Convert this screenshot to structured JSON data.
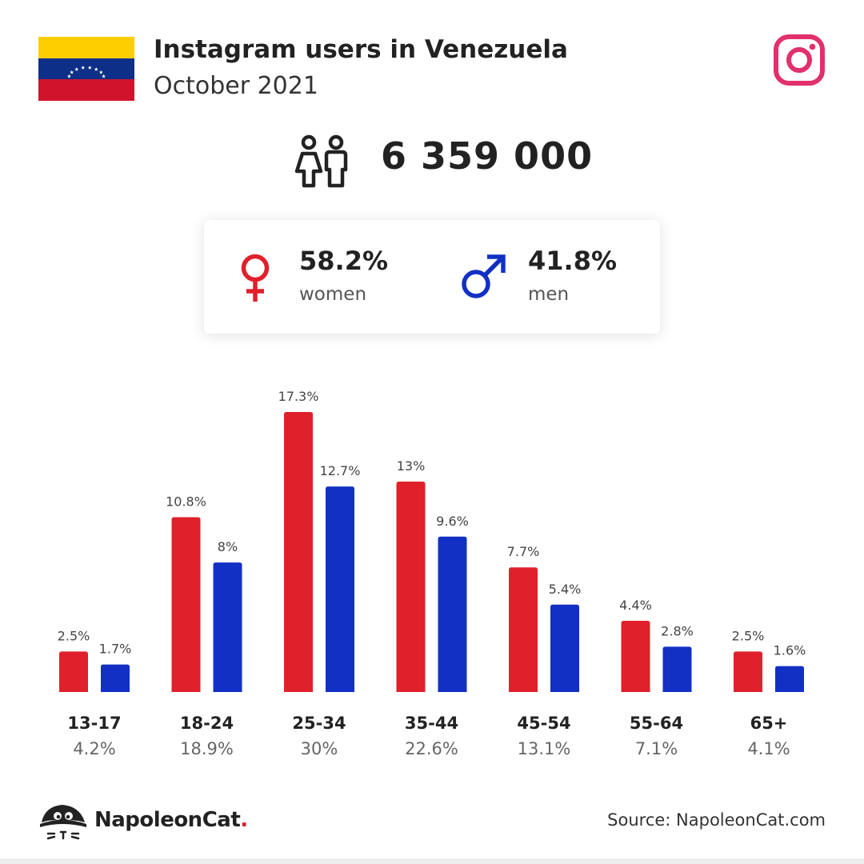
{
  "header": {
    "title": "Instagram users in Venezuela",
    "subtitle": "October 2021"
  },
  "flag": {
    "colors": [
      "#FFCE00",
      "#0E2F87",
      "#CF142B"
    ],
    "star_color": "#ffffff"
  },
  "icons": {
    "platform": "instagram-icon",
    "platform_color": "#E1306C",
    "users": "people-icon",
    "female": "female-symbol-icon",
    "male": "male-symbol-icon",
    "brand": "napoleoncat-logo-icon"
  },
  "total_users": "6 359 000",
  "gender": {
    "women": {
      "pct": "58.2%",
      "label": "women",
      "color": "#E0202A"
    },
    "men": {
      "pct": "41.8%",
      "label": "men",
      "color": "#1230C4"
    }
  },
  "chart_data": {
    "type": "bar",
    "categories": [
      "13-17",
      "18-24",
      "25-34",
      "35-44",
      "45-54",
      "55-64",
      "65+"
    ],
    "category_totals": [
      "4.2%",
      "18.9%",
      "30%",
      "22.6%",
      "13.1%",
      "7.1%",
      "4.1%"
    ],
    "series": [
      {
        "values": [
          2.5,
          10.8,
          17.3,
          13,
          7.7,
          4.4,
          2.5
        ],
        "labels": [
          "2.5%",
          "10.8%",
          "17.3%",
          "13%",
          "7.7%",
          "4.4%",
          "2.5%"
        ],
        "color": "#E0202A"
      },
      {
        "values": [
          1.7,
          8,
          12.7,
          9.6,
          5.4,
          2.8,
          1.6
        ],
        "labels": [
          "1.7%",
          "8%",
          "12.7%",
          "9.6%",
          "5.4%",
          "2.8%",
          "1.6%"
        ],
        "color": "#1230C4"
      }
    ],
    "ylim": [
      0,
      17.3
    ],
    "grid": false
  },
  "footer": {
    "brand_name": "NapoleonCat",
    "brand_dot": ".",
    "source": "Source: NapoleonCat.com"
  }
}
